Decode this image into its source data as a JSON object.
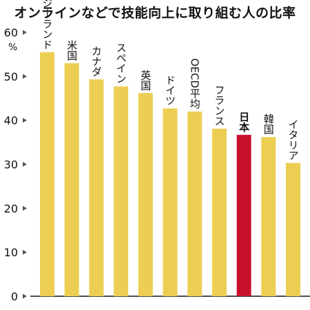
{
  "chart_data": {
    "type": "bar",
    "title": "オンラインなどで技能向上に取り組む人の比率",
    "ylabel": "%",
    "ylim": [
      0,
      60
    ],
    "yticks": [
      0,
      10,
      20,
      30,
      40,
      50,
      60
    ],
    "grid": false,
    "categories": [
      "ニュージーランド",
      "米国",
      "カナダ",
      "スペイン",
      "英国",
      "ドイツ",
      "OECD平均",
      "フランス",
      "日本",
      "韓国",
      "イタリア"
    ],
    "values": [
      55.5,
      53.0,
      49.3,
      47.7,
      46.2,
      42.7,
      42.0,
      38.1,
      36.7,
      36.2,
      30.3
    ],
    "highlight": "日本",
    "colors": {
      "bar": "#ecce52",
      "highlight_bar": "#c8102e",
      "axis": "#111111",
      "marker": "#555555"
    }
  }
}
